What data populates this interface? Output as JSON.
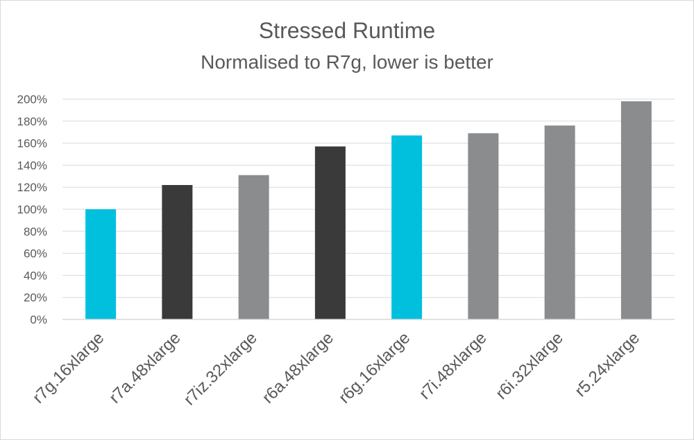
{
  "chart_data": {
    "type": "bar",
    "title": "Stressed Runtime",
    "subtitle": "Normalised to R7g, lower is better",
    "xlabel": "",
    "ylabel": "",
    "categories": [
      "r7g.16xlarge",
      "r7a.48xlarge",
      "r7iz.32xlarge",
      "r6a.48xlarge",
      "r6g.16xlarge",
      "r7i.48xlarge",
      "r6i.32xlarge",
      "r5.24xlarge"
    ],
    "values": [
      100,
      122,
      131,
      157,
      167,
      169,
      176,
      198
    ],
    "bar_colors": [
      "#00c0de",
      "#3a3a3a",
      "#8a8c8e",
      "#3a3a3a",
      "#00c0de",
      "#8a8c8e",
      "#8a8c8e",
      "#8a8c8e"
    ],
    "ylim": [
      0,
      200
    ],
    "ytick_step": 20,
    "ytick_format": "percent",
    "grid": true,
    "legend": "none"
  }
}
